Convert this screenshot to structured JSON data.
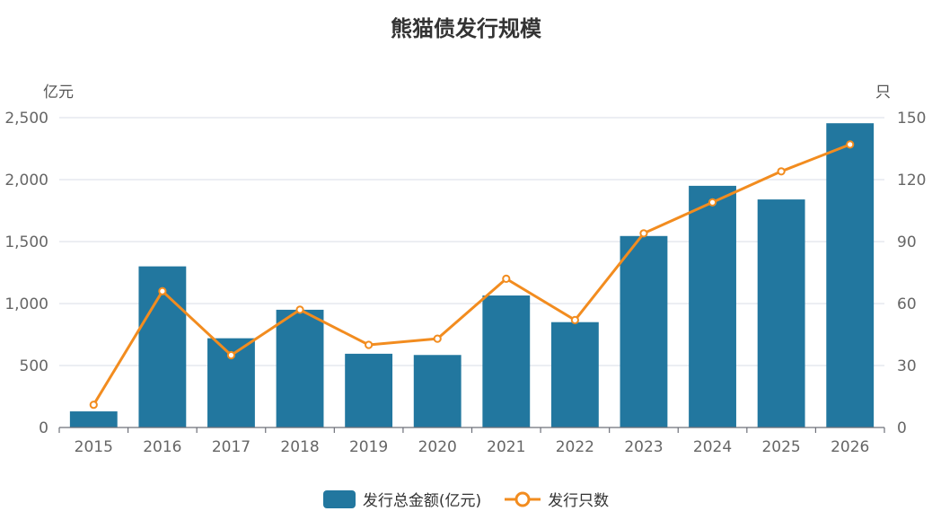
{
  "chart_data": {
    "type": "bar",
    "title": "熊猫债发行规模",
    "categories": [
      "2015",
      "2016",
      "2017",
      "2018",
      "2019",
      "2020",
      "2021",
      "2022",
      "2023",
      "2024",
      "2025",
      "2026"
    ],
    "y_left_unit": "亿元",
    "y_right_unit": "只",
    "y_left_ticks": [
      "0",
      "500",
      "1,000",
      "1,500",
      "2,000",
      "2,500"
    ],
    "y_right_ticks": [
      "0",
      "30",
      "60",
      "90",
      "120",
      "150"
    ],
    "ylim_left": [
      0,
      2500
    ],
    "ylim_right": [
      0,
      150
    ],
    "grid": true,
    "legend_position": "bottom",
    "series": [
      {
        "name": "发行总金额(亿元)",
        "type": "bar",
        "axis": "left",
        "color": "#22779f",
        "values": [
          130,
          1300,
          720,
          950,
          595,
          585,
          1065,
          850,
          1545,
          1950,
          1840,
          2455
        ]
      },
      {
        "name": "发行只数",
        "type": "line",
        "axis": "right",
        "color": "#f28c1f",
        "values": [
          11,
          66,
          35,
          57,
          40,
          43,
          72,
          52,
          94,
          109,
          124,
          137
        ]
      }
    ]
  }
}
